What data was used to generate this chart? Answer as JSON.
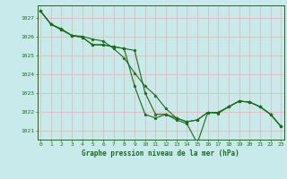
{
  "x": [
    0,
    1,
    2,
    3,
    4,
    5,
    6,
    7,
    8,
    9,
    10,
    11,
    12,
    13,
    14,
    15,
    16,
    17,
    18,
    19,
    20,
    21,
    22,
    23
  ],
  "line1": [
    1027.35,
    1026.65,
    1026.4,
    1026.05,
    1026.0,
    1025.85,
    1025.75,
    1025.35,
    1024.85,
    1024.05,
    1023.35,
    1022.85,
    1022.15,
    1021.65,
    1021.45,
    1021.55,
    1021.95,
    1021.95,
    1022.25,
    1022.55,
    1022.5,
    1022.25,
    1021.85,
    1021.2
  ],
  "line2": [
    1027.35,
    1026.65,
    1026.35,
    1026.05,
    1025.95,
    1025.55,
    1025.55,
    1025.45,
    1025.35,
    1025.25,
    1023.0,
    1021.85,
    1021.85,
    1021.65,
    1021.45,
    1021.55,
    1021.95,
    1021.95,
    1022.25,
    1022.55,
    1022.5,
    1022.25,
    1021.85,
    1021.2
  ],
  "line3": [
    1027.35,
    1026.65,
    1026.35,
    1026.05,
    1025.95,
    1025.55,
    1025.55,
    1025.45,
    1025.35,
    1023.35,
    1021.85,
    1021.65,
    1021.85,
    1021.55,
    1021.35,
    1020.3,
    1021.95,
    1021.9,
    1022.25,
    1022.55,
    1022.5,
    1022.25,
    1021.85,
    1021.2
  ],
  "ylim": [
    1020.5,
    1027.65
  ],
  "yticks": [
    1021,
    1022,
    1023,
    1024,
    1025,
    1026,
    1027
  ],
  "xlabel": "Graphe pression niveau de la mer (hPa)",
  "line_color": "#1a6b1a",
  "bg_color": "#c8eaea",
  "grid_color": "#e8b8b8",
  "marker": "*",
  "marker_size": 2.5,
  "line_width": 0.8
}
